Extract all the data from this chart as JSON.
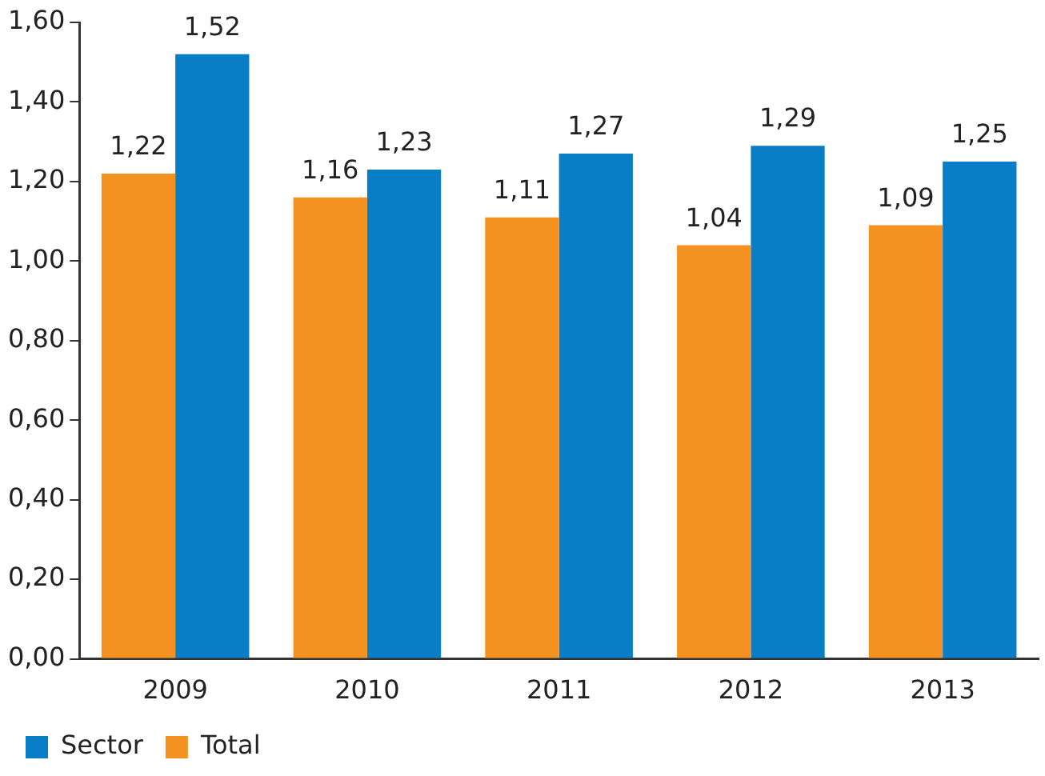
{
  "chart_data": {
    "type": "bar",
    "categories": [
      "2009",
      "2010",
      "2011",
      "2012",
      "2013"
    ],
    "series": [
      {
        "name": "Total",
        "color": "#f39220",
        "values": [
          1.22,
          1.16,
          1.11,
          1.04,
          1.09
        ],
        "value_labels": [
          "1,22",
          "1,16",
          "1,11",
          "1,04",
          "1,09"
        ]
      },
      {
        "name": "Sector",
        "color": "#0a7dc7",
        "values": [
          1.52,
          1.23,
          1.27,
          1.29,
          1.25
        ],
        "value_labels": [
          "1,52",
          "1,23",
          "1,27",
          "1,29",
          "1,25"
        ]
      }
    ],
    "ylim": [
      0,
      1.6
    ],
    "yticks": [
      {
        "value": 0,
        "label": "0,00"
      },
      {
        "value": 0.2,
        "label": "0,20"
      },
      {
        "value": 0.4,
        "label": "0,40"
      },
      {
        "value": 0.6,
        "label": "0,60"
      },
      {
        "value": 0.8,
        "label": "0,80"
      },
      {
        "value": 1,
        "label": "1,00"
      },
      {
        "value": 1.2,
        "label": "1,20"
      },
      {
        "value": 1.4,
        "label": "1,40"
      },
      {
        "value": 1.6,
        "label": "1,60"
      }
    ],
    "grid": false,
    "legend": "bottom left"
  }
}
